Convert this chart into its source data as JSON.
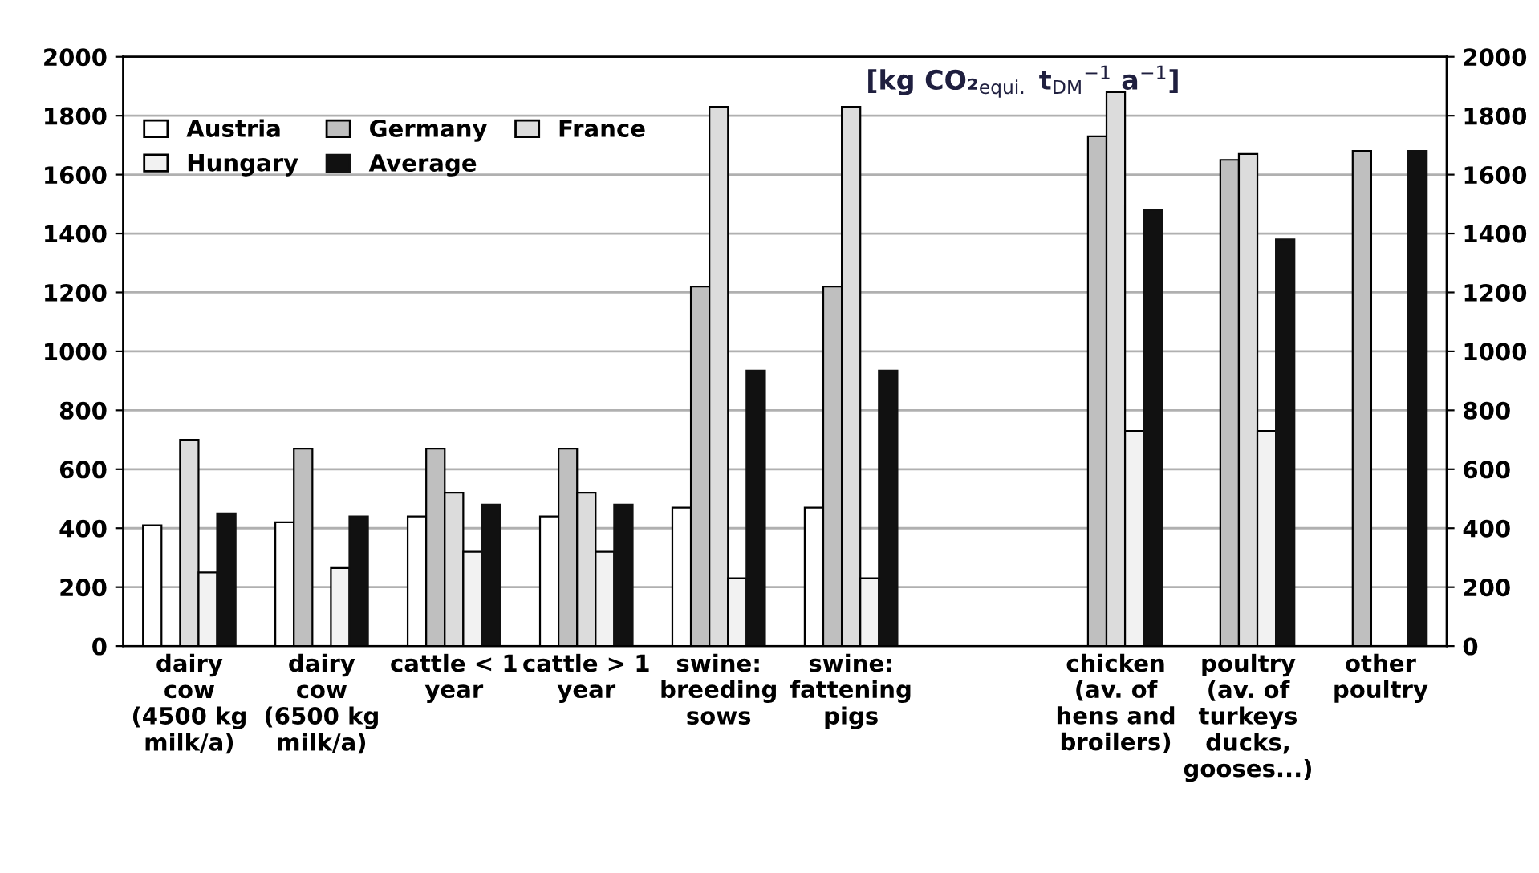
{
  "chart_data": {
    "type": "bar",
    "title": "[kg CO₂$_{equi.}$ t$_{DM}$$^{−1}$ a$^{−1}$]",
    "categories": [
      "dairy\ncow\n(4500 kg\nmilk/a)",
      "dairy\ncow\n(6500 kg\nmilk/a)",
      "cattle < 1\nyear",
      "cattle > 1\nyear",
      "swine:\nbreeding\nsows",
      "swine:\nfattening\npigs",
      null,
      "chicken\n(av. of\nhens and\nbroilers)",
      "poultry\n(av. of\nturkeys\nducks,\ngooses...)",
      "other\npoultry"
    ],
    "series": [
      {
        "name": "Austria",
        "color": "#ffffff",
        "values": [
          410,
          420,
          440,
          440,
          470,
          470,
          null,
          null,
          null,
          null
        ]
      },
      {
        "name": "Germany",
        "color": "#bfbfbf",
        "values": [
          null,
          670,
          670,
          670,
          1220,
          1220,
          null,
          1730,
          1650,
          1680
        ]
      },
      {
        "name": "France",
        "color": "#dcdcdc",
        "values": [
          700,
          null,
          520,
          520,
          1830,
          1830,
          null,
          1880,
          1670,
          null
        ]
      },
      {
        "name": "Hungary",
        "color": "#f2f2f2",
        "values": [
          250,
          265,
          320,
          320,
          230,
          230,
          null,
          730,
          730,
          null
        ]
      },
      {
        "name": "Average",
        "color": "#111111",
        "values": [
          450,
          440,
          480,
          480,
          935,
          935,
          null,
          1480,
          1380,
          1680
        ]
      }
    ],
    "ylim": [
      0,
      2000
    ],
    "yticks": [
      0,
      200,
      400,
      600,
      800,
      1000,
      1200,
      1400,
      1600,
      1800,
      2000
    ],
    "y2lim": [
      0,
      2000
    ],
    "y2ticks": [
      0,
      200,
      400,
      600,
      800,
      1000,
      1200,
      1400,
      1600,
      1800,
      2000
    ],
    "grid": "y",
    "legend": "top left"
  }
}
